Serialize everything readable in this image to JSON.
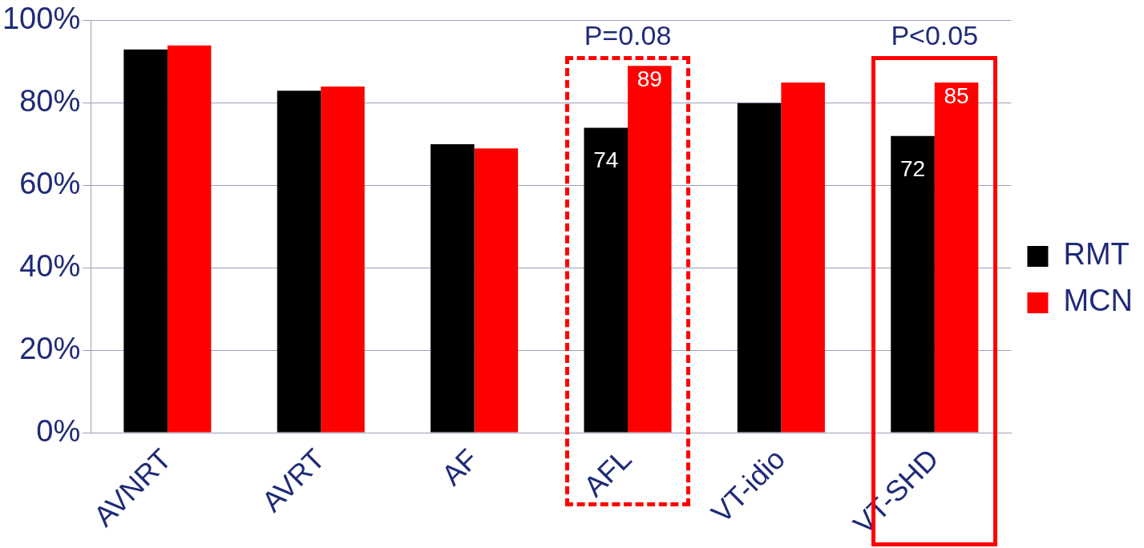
{
  "chart_data": {
    "type": "bar",
    "categories": [
      "AVNRT",
      "AVRT",
      "AF",
      "AFL",
      "VT-idio",
      "VT-SHD"
    ],
    "series": [
      {
        "name": "RMT",
        "color": "#000000",
        "values": [
          93,
          83,
          70,
          74,
          80,
          72
        ],
        "value_labels": [
          null,
          null,
          null,
          "74",
          null,
          "72"
        ]
      },
      {
        "name": "MCN",
        "color": "#ff0000",
        "values": [
          94,
          84,
          69,
          89,
          85,
          85
        ],
        "value_labels": [
          null,
          null,
          null,
          "89",
          null,
          "85"
        ]
      }
    ],
    "ylim": [
      0,
      100
    ],
    "yticks": [
      {
        "value": 0,
        "label": "0%"
      },
      {
        "value": 20,
        "label": "20%"
      },
      {
        "value": 40,
        "label": "40%"
      },
      {
        "value": 60,
        "label": "60%"
      },
      {
        "value": 80,
        "label": "80%"
      },
      {
        "value": 100,
        "label": "100%"
      }
    ],
    "grid": "y",
    "legend": "right",
    "annotations": [
      "P=0.08",
      "P<0.05"
    ]
  }
}
